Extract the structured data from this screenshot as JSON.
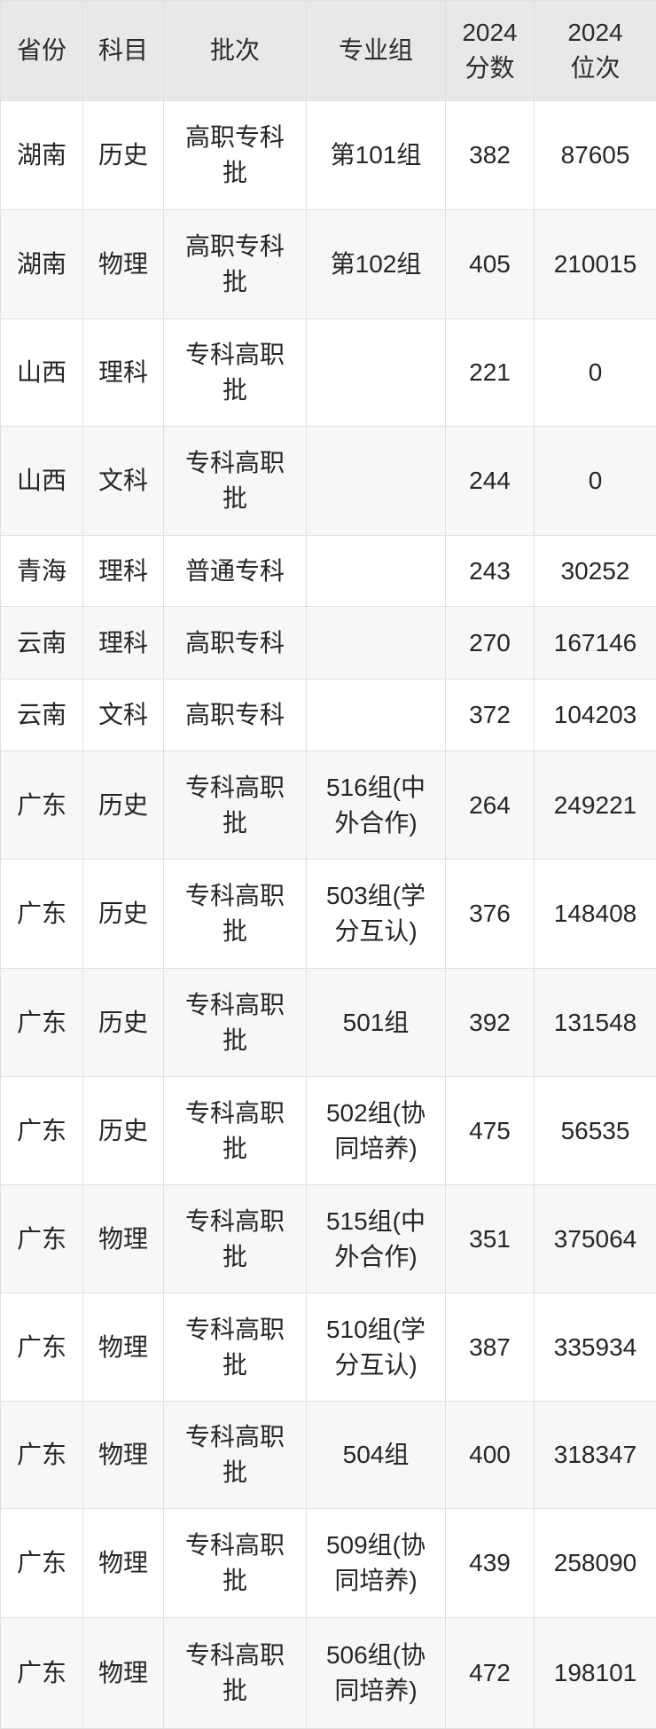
{
  "colors": {
    "header_bg": "#e8e8e8",
    "row_bg": "#ffffff",
    "row_alt_bg": "#f7f7f7",
    "border": "#e0e0e0",
    "text": "#262626"
  },
  "table": {
    "columns": [
      {
        "id": "province",
        "label": "省份"
      },
      {
        "id": "subject",
        "label": "科目"
      },
      {
        "id": "batch",
        "label": "批次"
      },
      {
        "id": "group",
        "label": "专业组"
      },
      {
        "id": "score",
        "label": "2024\n分数"
      },
      {
        "id": "rank",
        "label": "2024\n位次"
      }
    ],
    "rows": [
      {
        "province": "湖南",
        "subject": "历史",
        "batch": "高职专科批",
        "group": "第101组",
        "score": "382",
        "rank": "87605"
      },
      {
        "province": "湖南",
        "subject": "物理",
        "batch": "高职专科批",
        "group": "第102组",
        "score": "405",
        "rank": "210015"
      },
      {
        "province": "山西",
        "subject": "理科",
        "batch": "专科高职批",
        "group": "",
        "score": "221",
        "rank": "0"
      },
      {
        "province": "山西",
        "subject": "文科",
        "batch": "专科高职批",
        "group": "",
        "score": "244",
        "rank": "0"
      },
      {
        "province": "青海",
        "subject": "理科",
        "batch": "普通专科",
        "group": "",
        "score": "243",
        "rank": "30252"
      },
      {
        "province": "云南",
        "subject": "理科",
        "batch": "高职专科",
        "group": "",
        "score": "270",
        "rank": "167146"
      },
      {
        "province": "云南",
        "subject": "文科",
        "batch": "高职专科",
        "group": "",
        "score": "372",
        "rank": "104203"
      },
      {
        "province": "广东",
        "subject": "历史",
        "batch": "专科高职批",
        "group": "516组(中外合作)",
        "score": "264",
        "rank": "249221"
      },
      {
        "province": "广东",
        "subject": "历史",
        "batch": "专科高职批",
        "group": "503组(学分互认)",
        "score": "376",
        "rank": "148408"
      },
      {
        "province": "广东",
        "subject": "历史",
        "batch": "专科高职批",
        "group": "501组",
        "score": "392",
        "rank": "131548"
      },
      {
        "province": "广东",
        "subject": "历史",
        "batch": "专科高职批",
        "group": "502组(协同培养)",
        "score": "475",
        "rank": "56535"
      },
      {
        "province": "广东",
        "subject": "物理",
        "batch": "专科高职批",
        "group": "515组(中外合作)",
        "score": "351",
        "rank": "375064"
      },
      {
        "province": "广东",
        "subject": "物理",
        "batch": "专科高职批",
        "group": "510组(学分互认)",
        "score": "387",
        "rank": "335934"
      },
      {
        "province": "广东",
        "subject": "物理",
        "batch": "专科高职批",
        "group": "504组",
        "score": "400",
        "rank": "318347"
      },
      {
        "province": "广东",
        "subject": "物理",
        "batch": "专科高职批",
        "group": "509组(协同培养)",
        "score": "439",
        "rank": "258090"
      },
      {
        "province": "广东",
        "subject": "物理",
        "batch": "专科高职批",
        "group": "506组(协同培养)",
        "score": "472",
        "rank": "198101"
      }
    ]
  }
}
